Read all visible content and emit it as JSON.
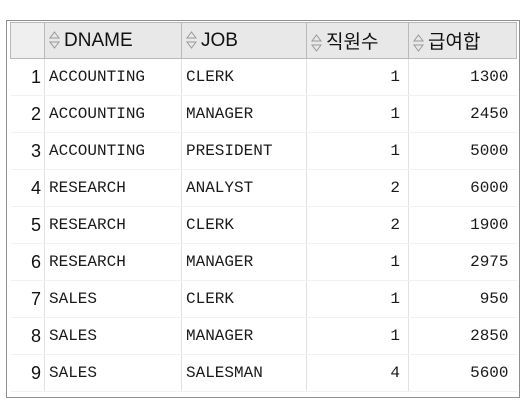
{
  "columns": [
    {
      "label": "DNAME",
      "sort_icon": "sort-arrows-icon"
    },
    {
      "label": "JOB",
      "sort_icon": "sort-arrows-icon"
    },
    {
      "label": "직원수",
      "sort_icon": "sort-arrows-icon"
    },
    {
      "label": "급여합",
      "sort_icon": "sort-arrows-icon"
    }
  ],
  "rows": [
    {
      "num": "1",
      "dname": "ACCOUNTING",
      "job": "CLERK",
      "count": "1",
      "sum": "1300"
    },
    {
      "num": "2",
      "dname": "ACCOUNTING",
      "job": "MANAGER",
      "count": "1",
      "sum": "2450"
    },
    {
      "num": "3",
      "dname": "ACCOUNTING",
      "job": "PRESIDENT",
      "count": "1",
      "sum": "5000"
    },
    {
      "num": "4",
      "dname": "RESEARCH",
      "job": "ANALYST",
      "count": "2",
      "sum": "6000"
    },
    {
      "num": "5",
      "dname": "RESEARCH",
      "job": "CLERK",
      "count": "2",
      "sum": "1900"
    },
    {
      "num": "6",
      "dname": "RESEARCH",
      "job": "MANAGER",
      "count": "1",
      "sum": "2975"
    },
    {
      "num": "7",
      "dname": "SALES",
      "job": "CLERK",
      "count": "1",
      "sum": "950"
    },
    {
      "num": "8",
      "dname": "SALES",
      "job": "MANAGER",
      "count": "1",
      "sum": "2850"
    },
    {
      "num": "9",
      "dname": "SALES",
      "job": "SALESMAN",
      "count": "4",
      "sum": "5600"
    }
  ]
}
